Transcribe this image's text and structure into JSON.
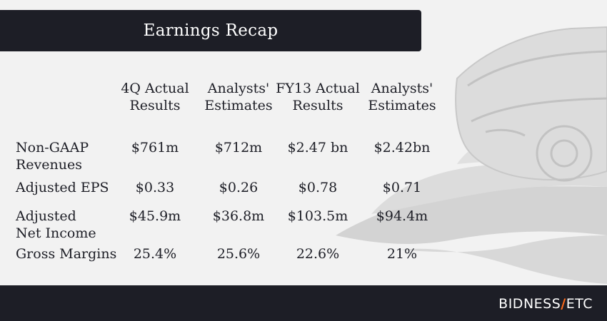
{
  "title": "Earnings Recap",
  "brand": {
    "part1": "BIDNESS",
    "accent": "/",
    "part2": "ETC"
  },
  "chart_data": {
    "type": "table",
    "columns": [
      "4Q Actual\nResults",
      "Analysts'\nEstimates",
      "FY13 Actual\nResults",
      "Analysts'\nEstimates"
    ],
    "rows": [
      {
        "label": "Non-GAAP\nRevenues",
        "values": [
          "$761m",
          "$712m",
          "$2.47 bn",
          "$2.42bn"
        ]
      },
      {
        "label": "Adjusted EPS",
        "values": [
          "$0.33",
          "$0.26",
          "$0.78",
          "$0.71"
        ]
      },
      {
        "label": "Adjusted\nNet Income",
        "values": [
          "$45.9m",
          "$36.8m",
          "$103.5m",
          "$94.4m"
        ]
      },
      {
        "label": "Gross Margins",
        "values": [
          "25.4%",
          "25.6%",
          "22.6%",
          "21%"
        ]
      }
    ]
  }
}
